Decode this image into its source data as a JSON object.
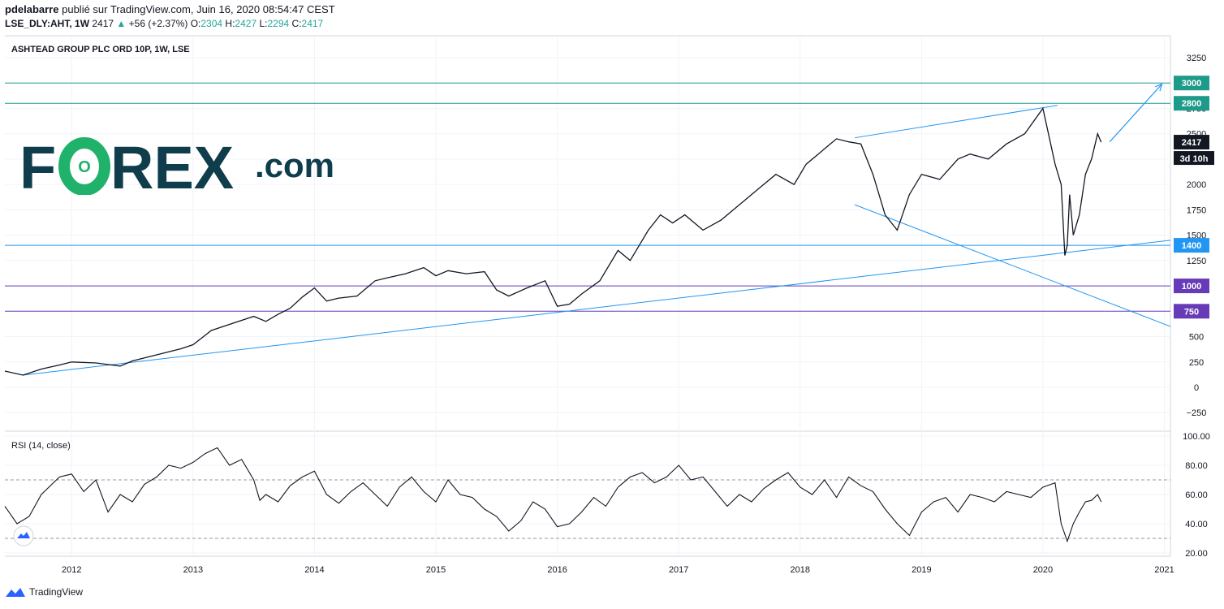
{
  "header": {
    "author": "pdelabarre",
    "published": "publié sur TradingView.com, Juin 16, 2020 08:54:47 CEST",
    "symbol": "LSE_DLY:AHT, 1W",
    "last": "2417",
    "change": "+56 (+2.37%)",
    "o_label": "O:",
    "o_value": "2304",
    "h_label": "H:",
    "h_value": "2427",
    "l_label": "L:",
    "l_value": "2294",
    "c_label": "C:",
    "c_value": "2417"
  },
  "logo": {
    "part1": "F",
    "part2": "REX",
    "part3": ".com",
    "letter_o": "O"
  },
  "footer": {
    "brand": "TradingView"
  },
  "colors": {
    "teal": "#1e9a8a",
    "blue": "#2196f3",
    "purple": "#673ab7",
    "forex_dark": "#0f3d4c",
    "forex_green": "#20b26b",
    "rsi_dash": "#9598a1"
  },
  "chart_data": [
    {
      "type": "line",
      "title": "ASHTEAD GROUP PLC ORD 10P, 1W, LSE",
      "ylim": [
        -350,
        3350
      ],
      "yticks": [
        "3250",
        "3000",
        "2750",
        "2500",
        "2250",
        "2000",
        "1750",
        "1500",
        "1250",
        "1000",
        "750",
        "500",
        "250",
        "0",
        "−250"
      ],
      "ytick_values": [
        3250,
        3000,
        2750,
        2500,
        2250,
        2000,
        1750,
        1500,
        1250,
        1000,
        750,
        500,
        250,
        0,
        -250
      ],
      "xlim": [
        2011.45,
        2021.05
      ],
      "xticks": [
        "2012",
        "2013",
        "2014",
        "2015",
        "2016",
        "2017",
        "2018",
        "2019",
        "2020",
        "2021"
      ],
      "xtick_values": [
        2012,
        2013,
        2014,
        2015,
        2016,
        2017,
        2018,
        2019,
        2020,
        2021
      ],
      "price": {
        "x": [
          2011.45,
          2011.6,
          2011.75,
          2011.9,
          2012.0,
          2012.2,
          2012.4,
          2012.5,
          2012.7,
          2012.9,
          2013.0,
          2013.15,
          2013.3,
          2013.5,
          2013.6,
          2013.7,
          2013.8,
          2013.9,
          2014.0,
          2014.1,
          2014.2,
          2014.35,
          2014.5,
          2014.6,
          2014.75,
          2014.9,
          2015.0,
          2015.1,
          2015.25,
          2015.4,
          2015.5,
          2015.6,
          2015.75,
          2015.9,
          2016.0,
          2016.1,
          2016.2,
          2016.35,
          2016.5,
          2016.6,
          2016.75,
          2016.85,
          2016.95,
          2017.05,
          2017.2,
          2017.35,
          2017.5,
          2017.65,
          2017.8,
          2017.95,
          2018.05,
          2018.15,
          2018.3,
          2018.4,
          2018.5,
          2018.6,
          2018.7,
          2018.8,
          2018.9,
          2019.0,
          2019.15,
          2019.3,
          2019.4,
          2019.55,
          2019.7,
          2019.85,
          2020.0,
          2020.1,
          2020.15,
          2020.18,
          2020.2,
          2020.22,
          2020.25,
          2020.3,
          2020.35,
          2020.4,
          2020.45,
          2020.48
        ],
        "y": [
          160,
          120,
          180,
          220,
          250,
          240,
          210,
          260,
          320,
          380,
          420,
          560,
          620,
          700,
          650,
          720,
          780,
          890,
          980,
          850,
          880,
          900,
          1050,
          1080,
          1120,
          1180,
          1100,
          1150,
          1120,
          1140,
          960,
          900,
          980,
          1050,
          800,
          820,
          920,
          1050,
          1350,
          1250,
          1550,
          1700,
          1620,
          1700,
          1550,
          1650,
          1800,
          1950,
          2100,
          2000,
          2200,
          2300,
          2450,
          2420,
          2400,
          2100,
          1700,
          1550,
          1900,
          2100,
          2050,
          2250,
          2300,
          2250,
          2400,
          2500,
          2750,
          2200,
          2000,
          1300,
          1400,
          1900,
          1500,
          1700,
          2100,
          2250,
          2500,
          2417
        ]
      },
      "horizontal_lines": [
        {
          "value": 3000,
          "label": "3000",
          "color": "#1e9a8a"
        },
        {
          "value": 2800,
          "label": "2800",
          "color": "#1e9a8a"
        },
        {
          "value": 1400,
          "label": "1400",
          "color": "#2196f3"
        },
        {
          "value": 1000,
          "label": "1000",
          "color": "#673ab7"
        },
        {
          "value": 750,
          "label": "750",
          "color": "#673ab7"
        }
      ],
      "trendlines": [
        {
          "x": [
            2011.6,
            2021.05
          ],
          "y": [
            120,
            1450
          ]
        },
        {
          "x": [
            2018.45,
            2020.12
          ],
          "y": [
            2460,
            2780
          ]
        },
        {
          "x": [
            2018.45,
            2021.05
          ],
          "y": [
            1800,
            600
          ]
        }
      ],
      "arrow": {
        "x": [
          2020.55,
          2020.98
        ],
        "y": [
          2420,
          2990
        ]
      },
      "last_price_label": "2417",
      "countdown_label": "3d 10h"
    },
    {
      "type": "line",
      "title": "RSI (14, close)",
      "ylim": [
        15,
        104
      ],
      "yticks": [
        "100.00",
        "80.00",
        "60.00",
        "40.00",
        "20.00"
      ],
      "ytick_values": [
        100,
        80,
        60,
        40,
        20
      ],
      "bands": [
        70,
        30
      ],
      "x": [
        2011.45,
        2011.55,
        2011.65,
        2011.75,
        2011.9,
        2012.0,
        2012.1,
        2012.2,
        2012.3,
        2012.4,
        2012.5,
        2012.6,
        2012.7,
        2012.8,
        2012.9,
        2013.0,
        2013.1,
        2013.2,
        2013.3,
        2013.4,
        2013.5,
        2013.55,
        2013.6,
        2013.7,
        2013.8,
        2013.9,
        2014.0,
        2014.1,
        2014.2,
        2014.3,
        2014.4,
        2014.5,
        2014.6,
        2014.7,
        2014.8,
        2014.9,
        2015.0,
        2015.1,
        2015.2,
        2015.3,
        2015.4,
        2015.5,
        2015.6,
        2015.7,
        2015.8,
        2015.9,
        2016.0,
        2016.1,
        2016.2,
        2016.3,
        2016.4,
        2016.5,
        2016.6,
        2016.7,
        2016.8,
        2016.9,
        2017.0,
        2017.1,
        2017.2,
        2017.3,
        2017.4,
        2017.5,
        2017.6,
        2017.7,
        2017.8,
        2017.9,
        2018.0,
        2018.1,
        2018.2,
        2018.3,
        2018.4,
        2018.5,
        2018.6,
        2018.7,
        2018.8,
        2018.9,
        2019.0,
        2019.1,
        2019.2,
        2019.3,
        2019.4,
        2019.5,
        2019.6,
        2019.7,
        2019.8,
        2019.9,
        2020.0,
        2020.1,
        2020.15,
        2020.2,
        2020.25,
        2020.3,
        2020.35,
        2020.4,
        2020.45,
        2020.48
      ],
      "y": [
        52,
        40,
        45,
        60,
        72,
        74,
        62,
        70,
        48,
        60,
        55,
        67,
        72,
        80,
        78,
        82,
        88,
        92,
        80,
        84,
        70,
        56,
        60,
        55,
        66,
        72,
        76,
        60,
        54,
        62,
        68,
        60,
        52,
        65,
        72,
        62,
        55,
        70,
        60,
        58,
        50,
        45,
        35,
        42,
        55,
        50,
        38,
        40,
        48,
        58,
        52,
        65,
        72,
        75,
        68,
        72,
        80,
        70,
        72,
        62,
        52,
        60,
        55,
        64,
        70,
        75,
        65,
        60,
        70,
        58,
        72,
        66,
        62,
        50,
        40,
        32,
        48,
        55,
        58,
        48,
        60,
        58,
        55,
        62,
        60,
        58,
        65,
        68,
        40,
        28,
        40,
        48,
        55,
        56,
        60,
        55
      ]
    }
  ]
}
